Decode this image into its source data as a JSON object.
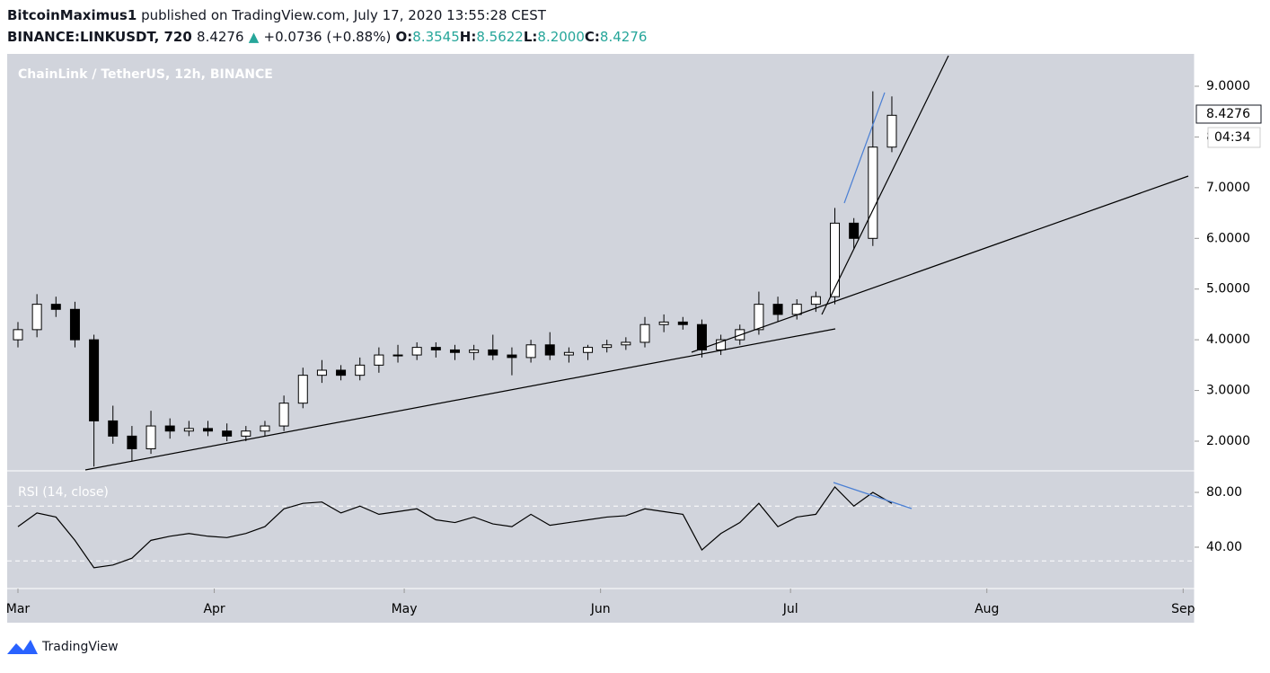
{
  "header": {
    "author": "BitcoinMaximus1",
    "published": "published on TradingView.com, July 17, 2020 13:55:28 CEST",
    "symbol": "BINANCE:LINKUSDT, 720",
    "last": "8.4276",
    "arrow": "▲",
    "change": "+0.0736 (+0.88%)",
    "ohlc": [
      {
        "label": "O:",
        "value": "8.3545"
      },
      {
        "label": "H:",
        "value": "8.5622"
      },
      {
        "label": "L:",
        "value": "8.2000"
      },
      {
        "label": "C:",
        "value": "8.4276"
      }
    ]
  },
  "chart_data": [
    {
      "type": "candlestick",
      "title": "ChainLink / TetherUS, 12h, BINANCE",
      "price_label": "8.4276",
      "countdown": "04:34",
      "up_color": "#ffffff",
      "down_color": "#000000",
      "x": [
        0,
        3,
        6,
        9,
        12,
        15,
        18,
        21,
        24,
        27,
        30,
        33,
        36,
        39,
        42,
        45,
        48,
        51,
        54,
        57,
        60,
        63,
        66,
        69,
        72,
        75,
        78,
        81,
        84,
        87,
        90,
        93,
        96,
        99,
        102,
        105,
        108,
        111,
        114,
        117,
        120,
        123,
        126,
        129,
        132,
        135,
        138
      ],
      "open": [
        4.0,
        4.2,
        4.7,
        4.6,
        4.0,
        2.4,
        2.1,
        1.85,
        2.3,
        2.2,
        2.25,
        2.2,
        2.1,
        2.2,
        2.3,
        2.75,
        3.3,
        3.4,
        3.3,
        3.5,
        3.7,
        3.7,
        3.85,
        3.8,
        3.75,
        3.8,
        3.7,
        3.65,
        3.9,
        3.7,
        3.75,
        3.85,
        3.9,
        3.95,
        4.3,
        4.35,
        4.3,
        3.8,
        4.0,
        4.2,
        4.7,
        4.5,
        4.7,
        4.85,
        6.3,
        6.0,
        7.8
      ],
      "high": [
        4.35,
        4.9,
        4.85,
        4.75,
        4.1,
        2.7,
        2.3,
        2.6,
        2.45,
        2.4,
        2.4,
        2.35,
        2.3,
        2.4,
        2.9,
        3.45,
        3.6,
        3.5,
        3.65,
        3.85,
        3.9,
        3.95,
        3.95,
        3.9,
        3.9,
        4.1,
        3.85,
        4.0,
        4.15,
        3.85,
        3.9,
        4.0,
        4.05,
        4.45,
        4.5,
        4.45,
        4.4,
        4.1,
        4.3,
        4.95,
        4.85,
        4.8,
        4.95,
        6.6,
        6.4,
        8.9,
        8.8
      ],
      "low": [
        3.85,
        4.05,
        4.45,
        3.85,
        1.5,
        1.95,
        1.6,
        1.75,
        2.05,
        2.1,
        2.1,
        2.0,
        2.0,
        2.1,
        2.2,
        2.65,
        3.15,
        3.2,
        3.2,
        3.35,
        3.55,
        3.6,
        3.65,
        3.6,
        3.6,
        3.6,
        3.3,
        3.55,
        3.6,
        3.55,
        3.6,
        3.75,
        3.8,
        3.85,
        4.15,
        4.2,
        3.65,
        3.7,
        3.9,
        4.1,
        4.35,
        4.4,
        4.55,
        4.7,
        5.8,
        5.85,
        7.7
      ],
      "close": [
        4.2,
        4.7,
        4.6,
        4.0,
        2.4,
        2.1,
        1.85,
        2.3,
        2.2,
        2.25,
        2.2,
        2.1,
        2.2,
        2.3,
        2.75,
        3.3,
        3.4,
        3.3,
        3.5,
        3.7,
        3.7,
        3.85,
        3.8,
        3.75,
        3.8,
        3.7,
        3.65,
        3.9,
        3.7,
        3.75,
        3.85,
        3.9,
        3.95,
        4.3,
        4.35,
        4.3,
        3.8,
        4.0,
        4.2,
        4.7,
        4.5,
        4.7,
        4.85,
        6.3,
        6.0,
        7.8,
        8.4276
      ],
      "xlim": [
        -1.7,
        185.8
      ],
      "xticks": [
        {
          "value": 0,
          "label": "Mar"
        },
        {
          "value": 31,
          "label": "Apr"
        },
        {
          "value": 61,
          "label": "May"
        },
        {
          "value": 92,
          "label": "Jun"
        },
        {
          "value": 122,
          "label": "Jul"
        },
        {
          "value": 153,
          "label": "Aug"
        },
        {
          "value": 184,
          "label": "Sep"
        }
      ],
      "ylim": [
        1.433,
        9.638
      ],
      "yticks": [
        {
          "value": 2,
          "label": "2.0000"
        },
        {
          "value": 3,
          "label": "3.0000"
        },
        {
          "value": 4,
          "label": "4.0000"
        },
        {
          "value": 5,
          "label": "5.0000"
        },
        {
          "value": 6,
          "label": "6.0000"
        },
        {
          "value": 7,
          "label": "7.0000"
        },
        {
          "value": 8,
          "label": "8.0000"
        },
        {
          "value": 9,
          "label": "9.0000"
        }
      ]
    },
    {
      "type": "line",
      "title": "RSI (14, close)",
      "color": "#000000",
      "x": [
        0,
        3,
        6,
        9,
        12,
        15,
        18,
        21,
        24,
        27,
        30,
        33,
        36,
        39,
        42,
        45,
        48,
        51,
        54,
        57,
        60,
        63,
        66,
        69,
        72,
        75,
        78,
        81,
        84,
        87,
        90,
        93,
        96,
        99,
        102,
        105,
        108,
        111,
        114,
        117,
        120,
        123,
        126,
        129,
        132,
        135,
        138
      ],
      "values": [
        55,
        65,
        62,
        45,
        25,
        27,
        32,
        45,
        48,
        50,
        48,
        47,
        50,
        55,
        68,
        72,
        73,
        65,
        70,
        64,
        66,
        68,
        60,
        58,
        62,
        57,
        55,
        64,
        56,
        58,
        60,
        62,
        63,
        68,
        66,
        64,
        38,
        50,
        58,
        72,
        55,
        62,
        64,
        84,
        70,
        80,
        72
      ],
      "xlim": [
        -1.7,
        185.8
      ],
      "ylim": [
        9.8,
        95.1
      ],
      "yticks": [
        {
          "value": 40,
          "label": "40.00"
        },
        {
          "value": 80,
          "label": "80.00"
        }
      ],
      "bands": [
        70,
        30
      ]
    }
  ],
  "footer": {
    "brand": "TradingView"
  }
}
